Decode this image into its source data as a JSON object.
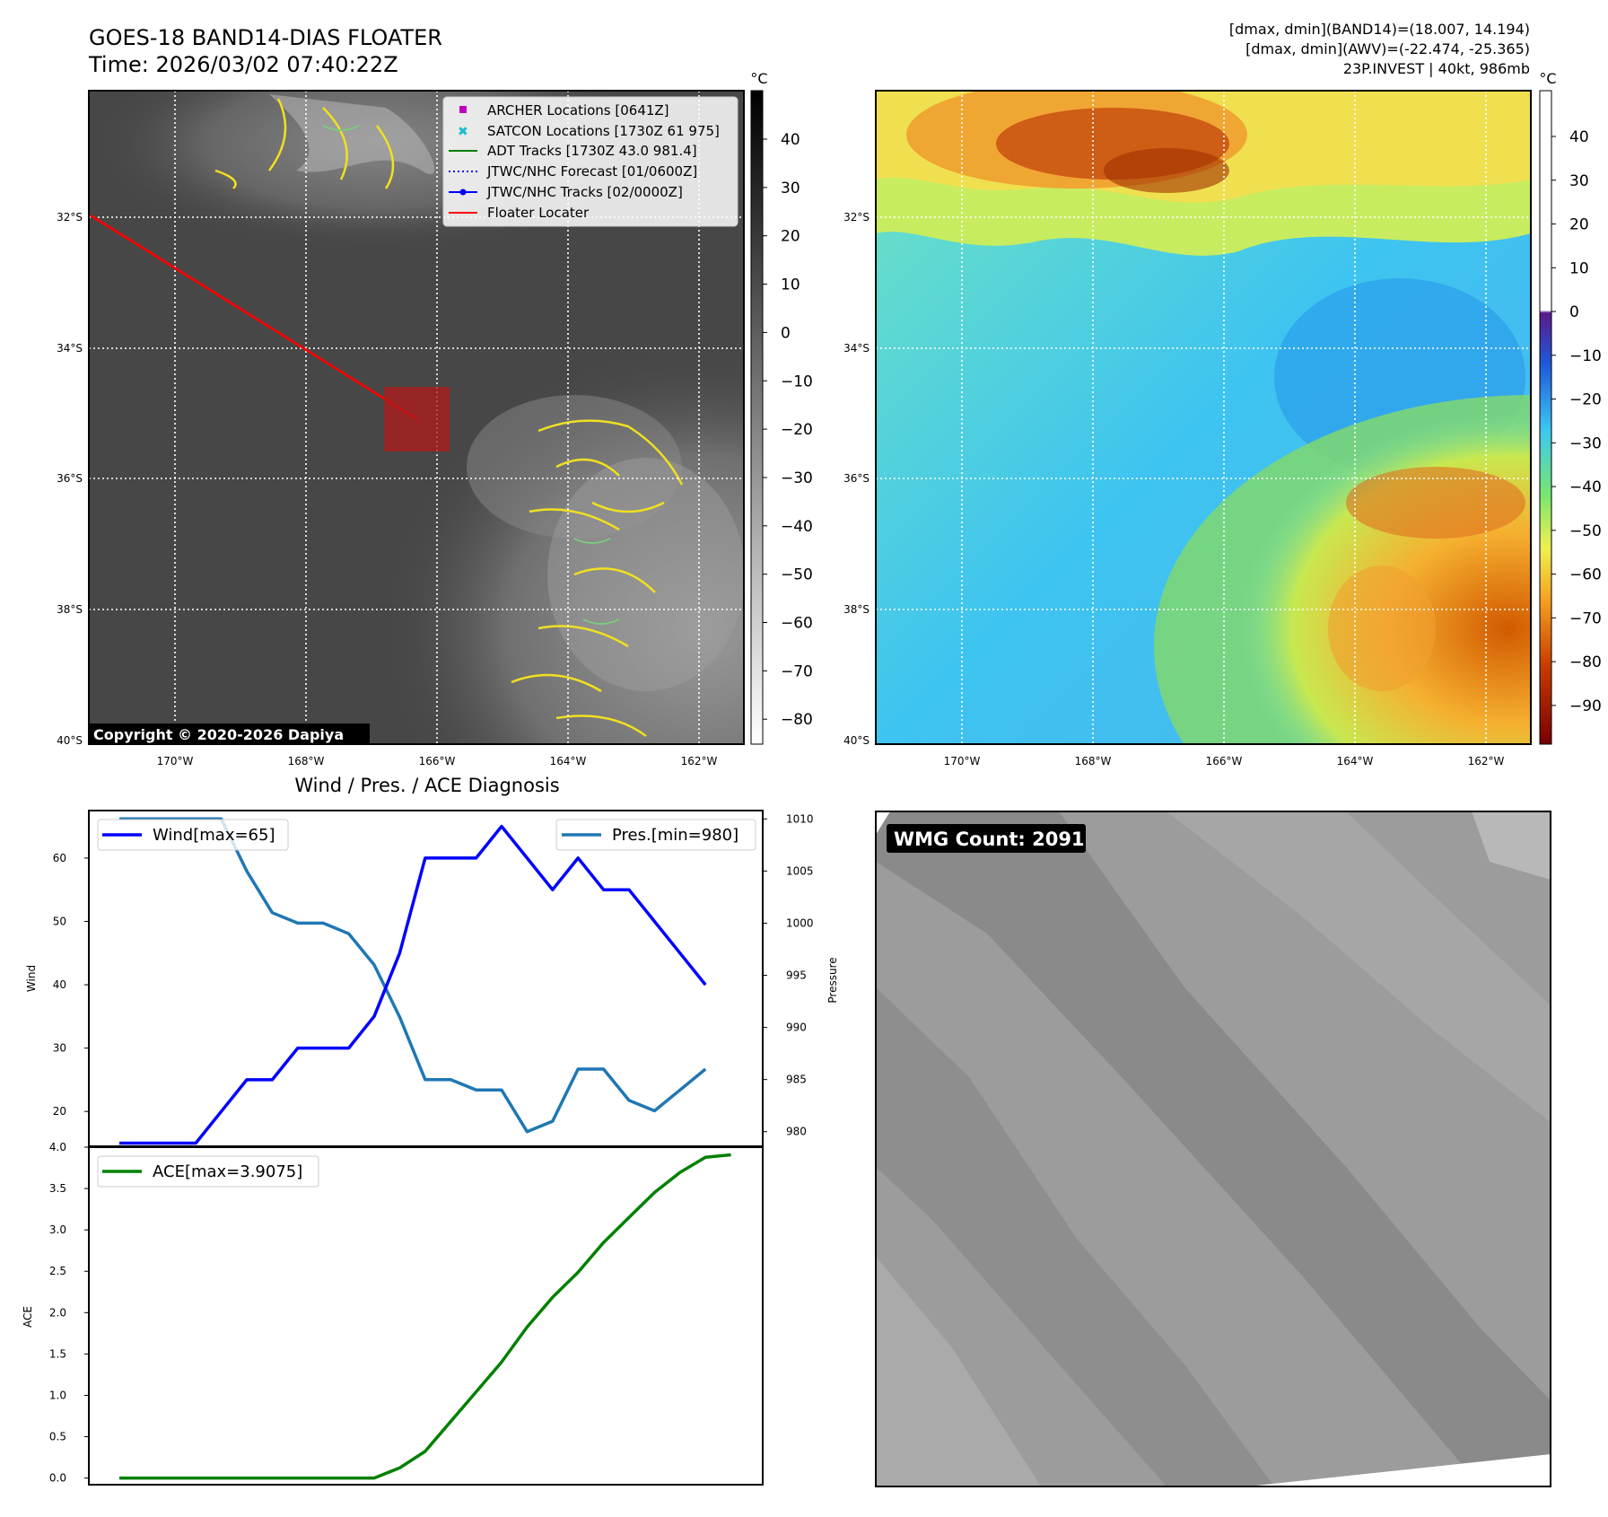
{
  "header": {
    "title": "GOES-18 BAND14-DIAS FLOATER",
    "time": "Time: 2026/03/02 07:40:22Z",
    "stats_band14": "[dmax, dmin](BAND14)=(18.007, 14.194)",
    "stats_awv": "[dmax, dmin](AWV)=(-22.474, -25.365)",
    "storm_info": "23P.INVEST | 40kt, 986mb"
  },
  "map": {
    "lat_labels": [
      "32°S",
      "34°S",
      "36°S",
      "38°S",
      "40°S"
    ],
    "lon_labels": [
      "170°W",
      "168°W",
      "166°W",
      "164°W",
      "162°W"
    ],
    "copyright": "Copyright © 2020-2026 Dapiya",
    "legend": [
      {
        "label": "ARCHER Locations [0641Z]",
        "color": "#c000c0",
        "marker": "square"
      },
      {
        "label": "SATCON Locations [1730Z 61 975]",
        "color": "#17becf",
        "marker": "x"
      },
      {
        "label": "ADT Tracks [1730Z 43.0 981.4]",
        "color": "#008000",
        "marker": "line"
      },
      {
        "label": "JTWC/NHC Forecast [01/0600Z]",
        "color": "#0000ff",
        "marker": "dotted"
      },
      {
        "label": "JTWC/NHC Tracks [02/0000Z]",
        "color": "#0000ff",
        "marker": "line-dot"
      },
      {
        "label": "Floater Locater",
        "color": "#ff0000",
        "marker": "line"
      }
    ]
  },
  "colorbar_gray": {
    "unit": "°C",
    "ticks": [
      "40",
      "30",
      "20",
      "10",
      "0",
      "−10",
      "−20",
      "−30",
      "−40",
      "−50",
      "−60",
      "−70",
      "−80"
    ]
  },
  "colorbar_color": {
    "unit": "°C",
    "ticks": [
      "40",
      "30",
      "20",
      "10",
      "0",
      "−10",
      "−20",
      "−30",
      "−40",
      "−50",
      "−60",
      "−70",
      "−80",
      "−90"
    ]
  },
  "wmg": {
    "label": "WMG Count: 2091"
  },
  "chart_data": [
    {
      "type": "line",
      "title": "Wind / Pres. / ACE Diagnosis",
      "ylabel": "Wind",
      "ylabel_right": "Pressure",
      "ylim": [
        14.5,
        67.5
      ],
      "ylim_right": [
        978.6,
        1010.8
      ],
      "yticks": [
        "20",
        "30",
        "40",
        "50",
        "60"
      ],
      "yticks_right": [
        "980",
        "985",
        "990",
        "995",
        "1000",
        "1005",
        "1010"
      ],
      "series": [
        {
          "name": "Wind[max=65]",
          "color": "#0000ff",
          "axis": "left",
          "values": [
            15,
            15,
            15,
            15,
            20,
            25,
            25,
            30,
            30,
            30,
            35,
            45,
            60,
            60,
            60,
            65,
            60,
            55,
            60,
            55,
            55,
            50,
            45,
            40
          ]
        },
        {
          "name": "Pres.[min=980]",
          "color": "#1f77b4",
          "axis": "right",
          "values": [
            1010,
            1010,
            1010,
            1010,
            1010,
            1005,
            1001,
            1000,
            1000,
            999,
            996,
            991,
            985,
            985,
            984,
            984,
            980,
            981,
            986,
            986,
            983,
            982,
            984,
            986
          ]
        }
      ]
    },
    {
      "type": "line",
      "ylabel": "ACE",
      "ylim": [
        -0.08,
        4.0
      ],
      "yticks": [
        "0.0",
        "0.5",
        "1.0",
        "1.5",
        "2.0",
        "2.5",
        "3.0",
        "3.5",
        "4.0"
      ],
      "series": [
        {
          "name": "ACE[max=3.9075]",
          "color": "#008000",
          "values": [
            0,
            0,
            0,
            0,
            0,
            0,
            0,
            0,
            0,
            0,
            0,
            0.1225,
            0.3225,
            0.6825,
            1.0425,
            1.4025,
            1.825,
            2.185,
            2.4875,
            2.8475,
            3.15,
            3.4525,
            3.695,
            3.8775,
            3.9075
          ]
        }
      ]
    }
  ]
}
